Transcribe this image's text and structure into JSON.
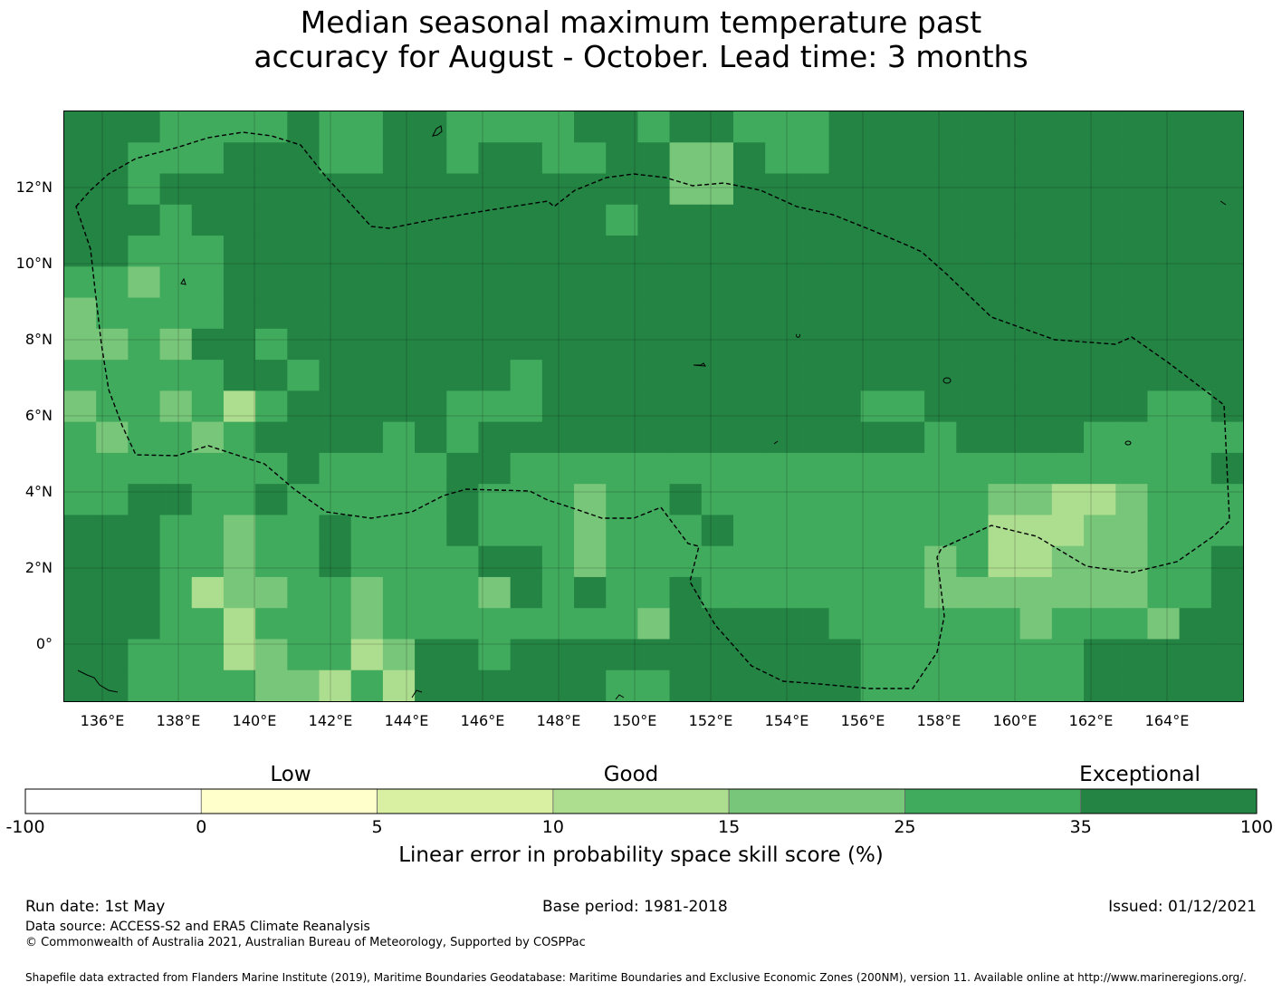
{
  "title": {
    "line1": "Median seasonal maximum temperature past",
    "line2": "accuracy for August - October. Lead time: 3 months"
  },
  "map": {
    "lon_labels": [
      "136°E",
      "138°E",
      "140°E",
      "142°E",
      "144°E",
      "146°E",
      "148°E",
      "150°E",
      "152°E",
      "154°E",
      "156°E",
      "158°E",
      "160°E",
      "162°E",
      "164°E"
    ],
    "lat_labels": [
      "12°N",
      "10°N",
      "8°N",
      "6°N",
      "4°N",
      "2°N",
      "0°"
    ],
    "lon_range": [
      135.0,
      166.0
    ],
    "lat_range": [
      -1.5,
      14.0
    ],
    "grid_resolution_deg": 0.83,
    "boundary": "dashed EEZ outline",
    "grid_lines": true
  },
  "colorbar": {
    "categories": [
      {
        "label": "Low"
      },
      {
        "label": "Good"
      },
      {
        "label": "Exceptional"
      }
    ],
    "ticks": [
      "-100",
      "0",
      "5",
      "10",
      "15",
      "25",
      "35",
      "100"
    ],
    "colors": [
      "#ffffff",
      "#ffffcc",
      "#d9f0a3",
      "#addd8e",
      "#78c679",
      "#41ab5d",
      "#238443"
    ],
    "title": "Linear error in probability space skill score (%)"
  },
  "footer": {
    "run_date": "Run date: 1st May",
    "base_period": "Base period: 1981-2018",
    "issued": "Issued: 01/12/2021",
    "data_source": "Data source: ACCESS-S2 and ERA5 Climate Reanalysis",
    "copyright": "© Commonwealth of Australia 2021, Australian Bureau of Meteorology, Supported by COSPPac",
    "shapefile": "Shapefile data extracted from Flanders Marine Institute (2019), Maritime Boundaries Geodatabase: Maritime Boundaries and Exclusive Economic Zones (200NM), version 11. Available online at http://www.marineregions.org/."
  }
}
